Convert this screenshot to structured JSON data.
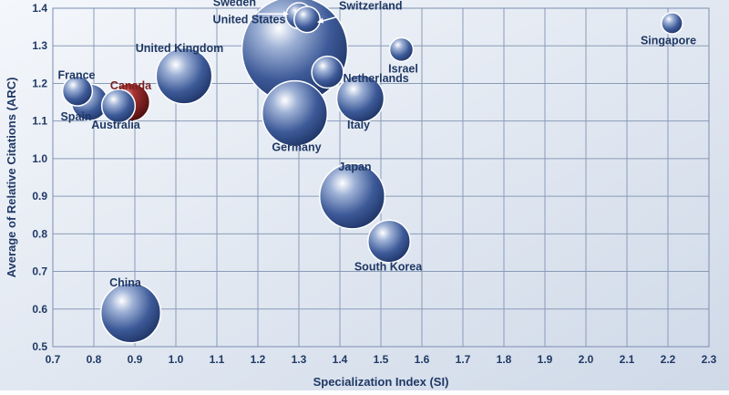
{
  "chart_data": {
    "type": "scatter",
    "title": "",
    "xlabel": "Specialization Index (SI)",
    "ylabel": "Average of Relative Citations (ARC)",
    "xlim": [
      0.7,
      2.3
    ],
    "ylim": [
      0.5,
      1.4
    ],
    "xticks": [
      "0.7",
      "0.8",
      "0.9",
      "1.0",
      "1.1",
      "1.2",
      "1.3",
      "1.4",
      "1.5",
      "1.6",
      "1.7",
      "1.8",
      "1.9",
      "2.0",
      "2.1",
      "2.2",
      "2.3"
    ],
    "yticks": [
      "0.5",
      "0.6",
      "0.7",
      "0.8",
      "0.9",
      "1.0",
      "1.1",
      "1.2",
      "1.3",
      "1.4"
    ],
    "grid": true,
    "legend": "none",
    "bubble_color": "#2f4d8a",
    "highlight_color": "#7b1a1a",
    "points": [
      {
        "name": "United States",
        "x": 1.29,
        "y": 1.29,
        "size": 100
      },
      {
        "name": "Sweden",
        "x": 1.3,
        "y": 1.38,
        "size": 6
      },
      {
        "name": "Switzerland",
        "x": 1.32,
        "y": 1.37,
        "size": 6
      },
      {
        "name": "Israel",
        "x": 1.55,
        "y": 1.29,
        "size": 5
      },
      {
        "name": "Singapore",
        "x": 2.21,
        "y": 1.36,
        "size": 4
      },
      {
        "name": "Netherlands",
        "x": 1.37,
        "y": 1.23,
        "size": 9
      },
      {
        "name": "United Kingdom",
        "x": 1.02,
        "y": 1.22,
        "size": 28
      },
      {
        "name": "France",
        "x": 0.76,
        "y": 1.18,
        "size": 8
      },
      {
        "name": "Canada",
        "x": 0.89,
        "y": 1.15,
        "size": 13,
        "highlight": true
      },
      {
        "name": "Spain",
        "x": 0.79,
        "y": 1.15,
        "size": 12
      },
      {
        "name": "Australia",
        "x": 0.86,
        "y": 1.14,
        "size": 10
      },
      {
        "name": "Germany",
        "x": 1.29,
        "y": 1.12,
        "size": 38
      },
      {
        "name": "Italy",
        "x": 1.45,
        "y": 1.16,
        "size": 20
      },
      {
        "name": "Japan",
        "x": 1.43,
        "y": 0.9,
        "size": 38
      },
      {
        "name": "South Korea",
        "x": 1.52,
        "y": 0.78,
        "size": 16
      },
      {
        "name": "China",
        "x": 0.89,
        "y": 0.59,
        "size": 32
      }
    ]
  }
}
